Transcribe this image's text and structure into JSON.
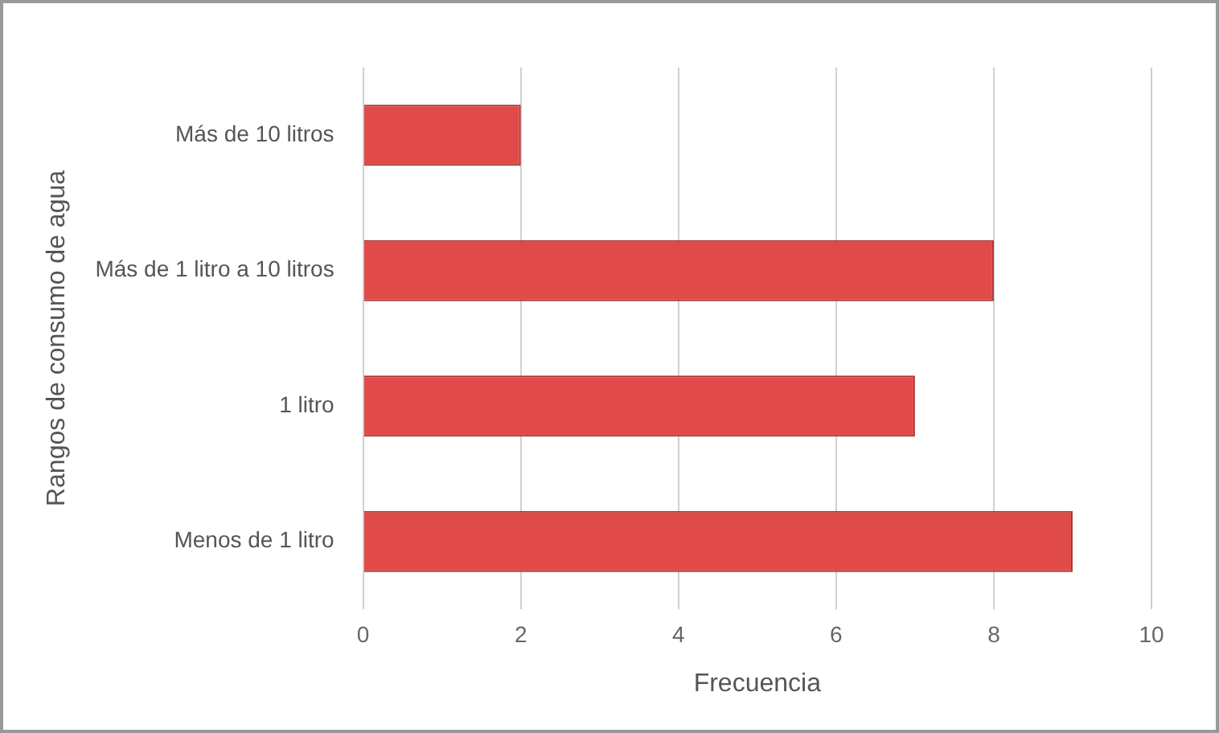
{
  "chart_data": {
    "type": "bar",
    "orientation": "horizontal",
    "xlabel": "Frecuencia",
    "ylabel": "Rangos de consumo de agua",
    "categories": [
      "Más de 10 litros",
      "Más de 1 litro a 10 litros",
      "1 litro",
      "Menos de 1 litro"
    ],
    "values": [
      2,
      8,
      7,
      9
    ],
    "color": "#e04b4a",
    "xlim": [
      0,
      10
    ],
    "xticks": [
      0,
      2,
      4,
      6,
      8,
      10
    ],
    "grid": "x",
    "legend": false
  }
}
